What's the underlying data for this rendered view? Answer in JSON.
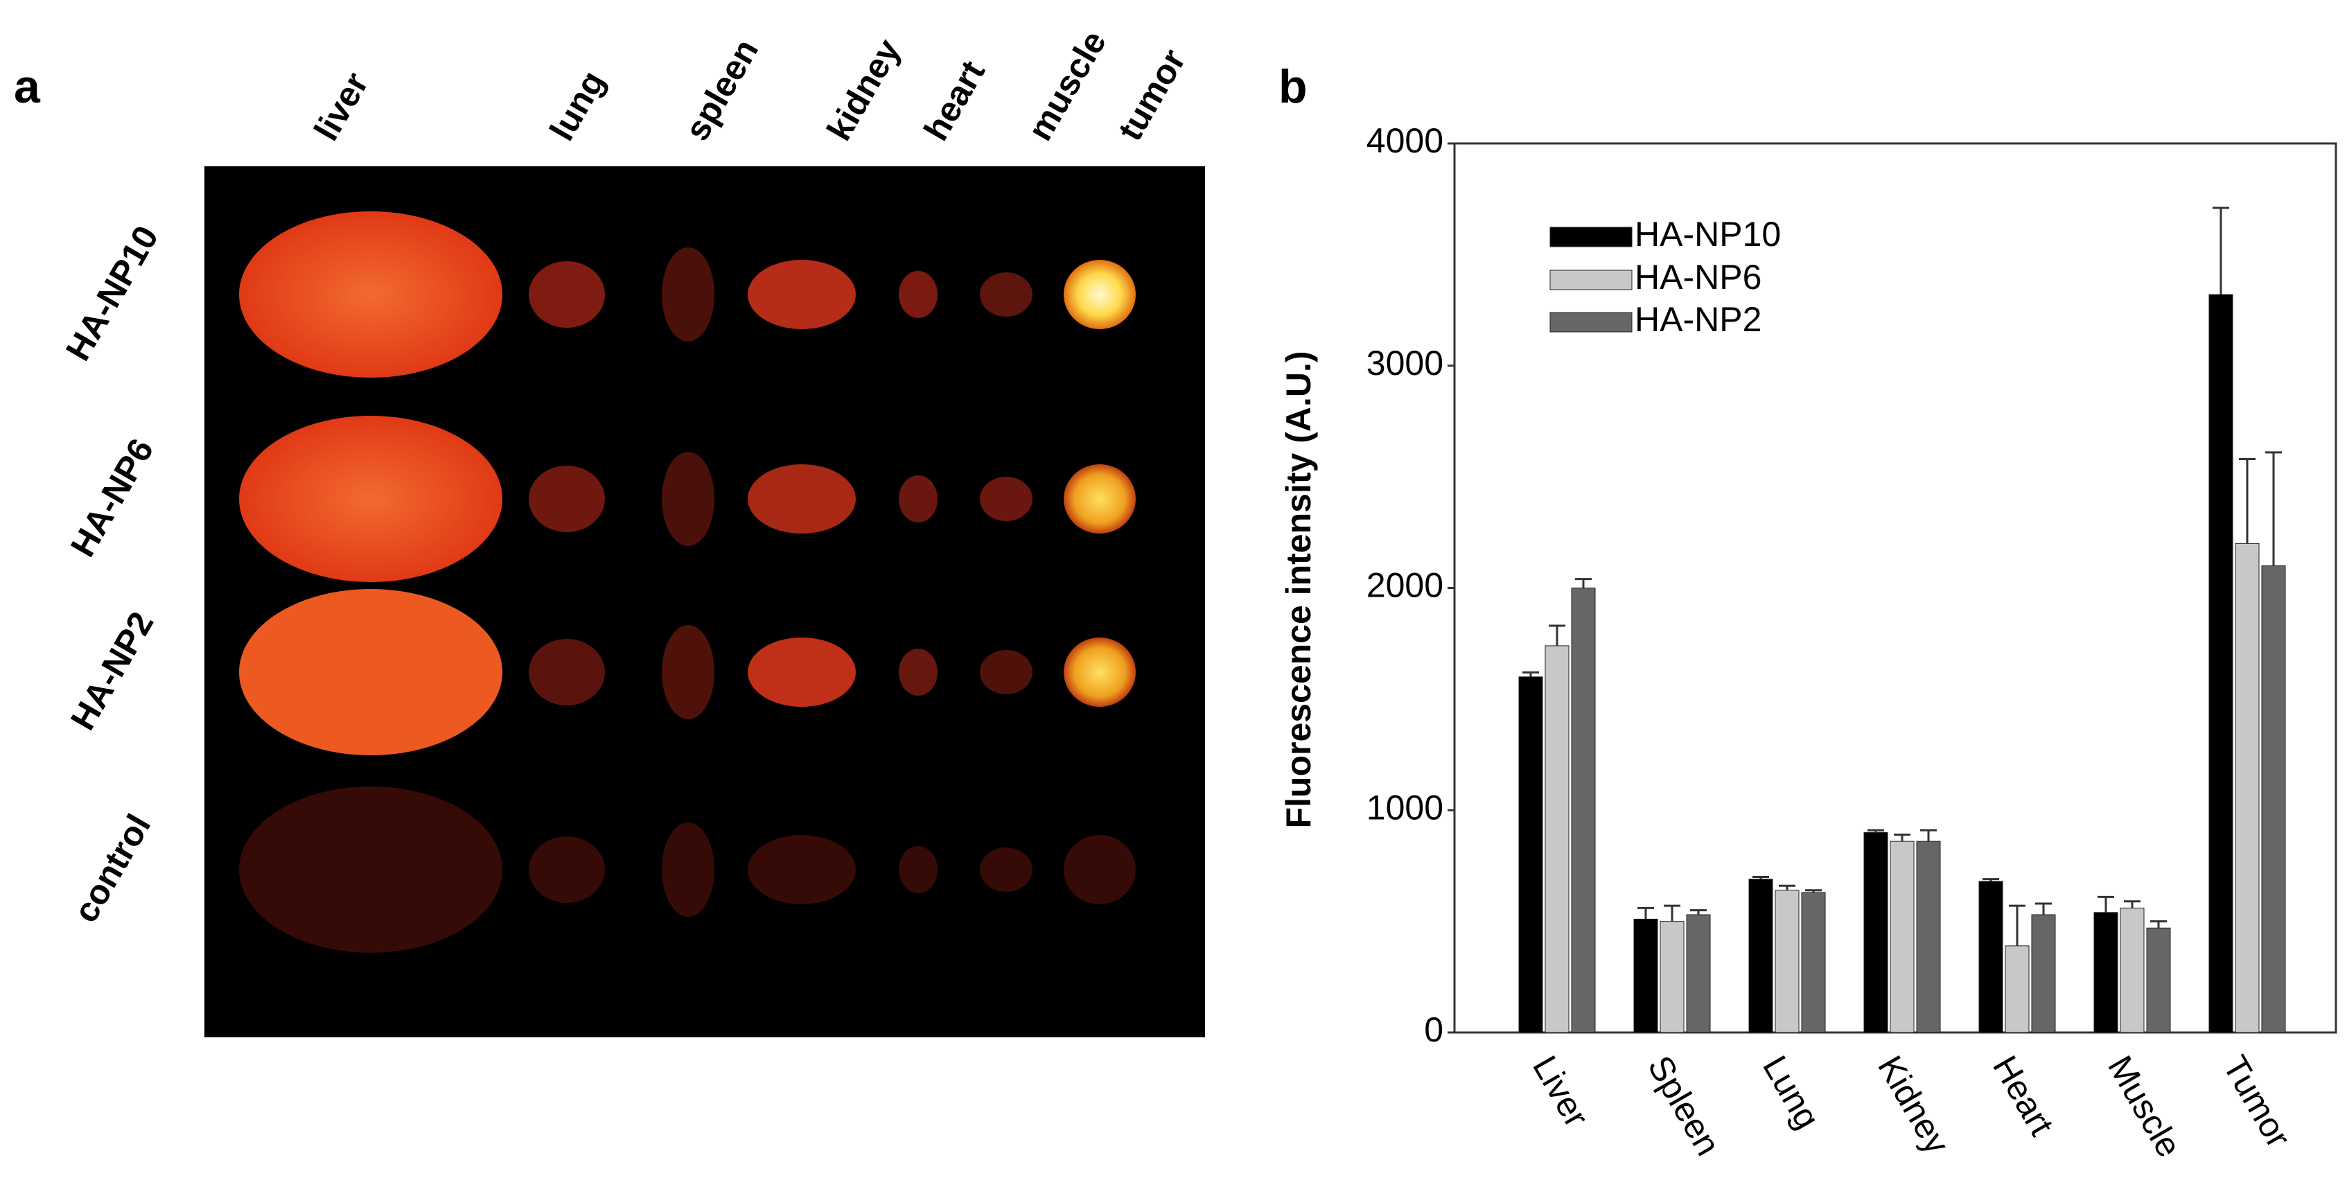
{
  "panel_a": {
    "label": "a",
    "organs": [
      "liver",
      "lung",
      "spleen",
      "kidney",
      "heart",
      "muscle",
      "tumor"
    ],
    "rows": [
      "HA-NP10",
      "HA-NP6",
      "HA-NP2",
      "control"
    ]
  },
  "chart_data": {
    "type": "bar",
    "panel_label": "b",
    "ylabel": "Fluorescence intensity (A.U.)",
    "categories": [
      "Liver",
      "Spleen",
      "Lung",
      "Kidney",
      "Heart",
      "Muscle",
      "Tumor"
    ],
    "series": [
      {
        "name": "HA-NP10",
        "color": "#000000",
        "values": [
          1600,
          510,
          690,
          900,
          680,
          540,
          3320
        ],
        "errors": [
          20,
          50,
          10,
          10,
          10,
          70,
          390
        ]
      },
      {
        "name": "HA-NP6",
        "color": "#c8c8c8",
        "values": [
          1740,
          500,
          640,
          860,
          390,
          560,
          2200
        ],
        "errors": [
          90,
          70,
          20,
          30,
          180,
          30,
          380
        ]
      },
      {
        "name": "HA-NP2",
        "color": "#666666",
        "values": [
          2000,
          530,
          630,
          860,
          530,
          470,
          2100
        ],
        "errors": [
          40,
          20,
          10,
          50,
          50,
          30,
          510
        ]
      }
    ],
    "ylim": [
      0,
      4000
    ],
    "yticks": [
      0,
      1000,
      2000,
      3000,
      4000
    ],
    "grid": false,
    "legend": "upper left"
  }
}
